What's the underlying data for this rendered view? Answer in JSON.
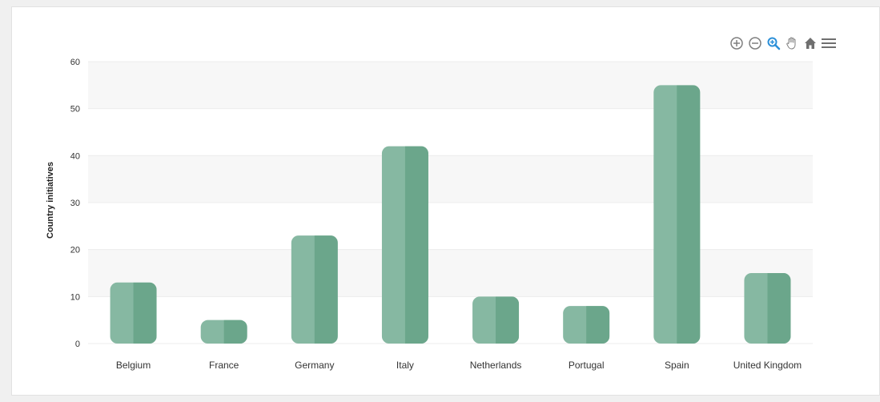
{
  "chart_data": {
    "type": "bar",
    "title": "",
    "xlabel": "",
    "ylabel": "Country initiatives",
    "categories": [
      "Belgium",
      "France",
      "Germany",
      "Italy",
      "Netherlands",
      "Portugal",
      "Spain",
      "United Kingdom"
    ],
    "values": [
      13,
      5,
      23,
      42,
      10,
      8,
      55,
      15
    ],
    "ylim": [
      0,
      60
    ],
    "yticks": [
      "0",
      "10",
      "20",
      "30",
      "40",
      "50",
      "60"
    ],
    "grid": "alternating horizontal bands",
    "legend": "none"
  },
  "colors": {
    "bar_light": "#86b8a2",
    "bar_dark": "#6ba68b",
    "band": "#f7f7f7",
    "toolbar_gray": "#7f7f7f",
    "toolbar_active": "#2a8fd8"
  },
  "toolbar": {
    "icons": [
      "zoom-in-icon",
      "zoom-out-icon",
      "selection-zoom-icon",
      "pan-hand-icon",
      "reset-home-icon",
      "menu-icon"
    ]
  }
}
